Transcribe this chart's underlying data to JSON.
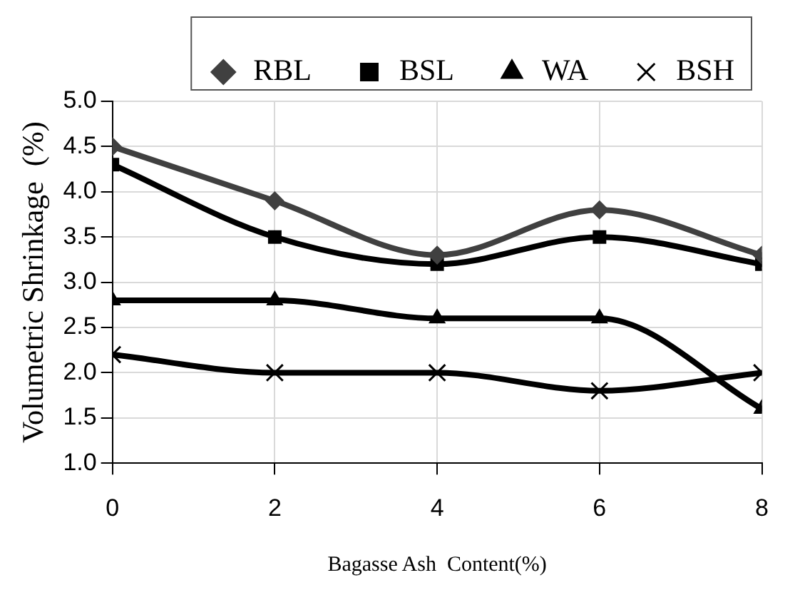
{
  "chart_data": {
    "type": "line",
    "xlabel": "Bagasse Ash  Content(%)",
    "ylabel": "Volumetric Shrinkage  (%)",
    "x": [
      0,
      2,
      4,
      6,
      8
    ],
    "series": [
      {
        "name": "RBL",
        "color": "#404040",
        "marker": "diamond",
        "values": [
          4.5,
          3.9,
          3.3,
          3.8,
          3.3
        ]
      },
      {
        "name": "BSL",
        "color": "#000000",
        "marker": "square",
        "values": [
          4.3,
          3.5,
          3.2,
          3.5,
          3.2
        ]
      },
      {
        "name": "WA",
        "color": "#000000",
        "marker": "triangle",
        "values": [
          2.8,
          2.8,
          2.6,
          2.6,
          1.6
        ]
      },
      {
        "name": "BSH",
        "color": "#000000",
        "marker": "cross",
        "values": [
          2.2,
          2.0,
          2.0,
          1.8,
          2.0
        ]
      }
    ],
    "xlim": [
      0,
      8
    ],
    "xticks": [
      0,
      2,
      4,
      6,
      8
    ],
    "ylim": [
      1,
      5
    ],
    "yticks": [
      {
        "value": 1,
        "label": "1.0"
      },
      1.5,
      {
        "value": 2,
        "label": "2.0"
      },
      2.5,
      {
        "value": 3,
        "label": "3.0"
      },
      3.5,
      {
        "value": 4,
        "label": "4.0"
      },
      4.5,
      {
        "value": 5,
        "label": "5.0"
      }
    ],
    "grid": true,
    "legend": "top",
    "line_style": "solid"
  }
}
